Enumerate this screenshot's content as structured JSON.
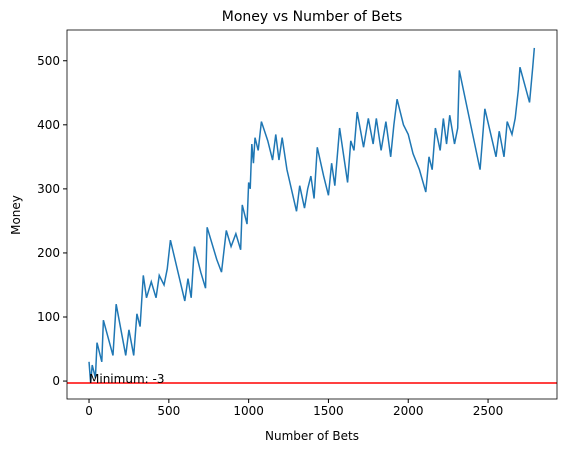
{
  "chart_data": {
    "type": "line",
    "title": "Money vs Number of Bets",
    "x_label": "Number of Bets",
    "y_label": "Money",
    "x": [
      0,
      10,
      20,
      40,
      50,
      80,
      90,
      150,
      170,
      230,
      250,
      280,
      300,
      320,
      340,
      360,
      390,
      420,
      440,
      470,
      490,
      510,
      600,
      620,
      640,
      660,
      700,
      730,
      740,
      800,
      830,
      860,
      890,
      920,
      950,
      960,
      990,
      1000,
      1010,
      1020,
      1030,
      1040,
      1060,
      1080,
      1120,
      1150,
      1170,
      1190,
      1210,
      1240,
      1300,
      1320,
      1350,
      1370,
      1390,
      1410,
      1430,
      1470,
      1500,
      1520,
      1540,
      1570,
      1620,
      1640,
      1660,
      1680,
      1720,
      1750,
      1780,
      1800,
      1830,
      1860,
      1890,
      1910,
      1930,
      1970,
      2000,
      2030,
      2070,
      2110,
      2130,
      2150,
      2170,
      2200,
      2220,
      2240,
      2260,
      2290,
      2310,
      2320,
      2450,
      2480,
      2550,
      2570,
      2600,
      2620,
      2650,
      2670,
      2690,
      2700,
      2760,
      2780,
      2790
    ],
    "series": [
      {
        "name": "Money",
        "color": "#1f77b4",
        "values": [
          30,
          -3,
          25,
          5,
          60,
          30,
          95,
          40,
          120,
          40,
          80,
          40,
          105,
          85,
          165,
          130,
          155,
          130,
          165,
          150,
          175,
          220,
          125,
          160,
          130,
          210,
          170,
          145,
          240,
          190,
          170,
          235,
          210,
          230,
          205,
          275,
          245,
          310,
          300,
          370,
          340,
          380,
          360,
          405,
          375,
          345,
          385,
          345,
          380,
          330,
          265,
          305,
          270,
          300,
          320,
          285,
          365,
          320,
          290,
          340,
          305,
          395,
          310,
          375,
          360,
          420,
          365,
          410,
          370,
          410,
          360,
          405,
          350,
          400,
          440,
          400,
          385,
          355,
          330,
          295,
          350,
          330,
          395,
          360,
          410,
          370,
          415,
          370,
          395,
          485,
          330,
          425,
          350,
          390,
          350,
          405,
          385,
          410,
          455,
          490,
          435,
          490,
          520
        ]
      }
    ],
    "hline": {
      "value": -3,
      "color": "#ff0000"
    },
    "annotation": {
      "text": "Minimum: -3",
      "x": 0,
      "y": -3
    },
    "xlim": [
      -138,
      2932
    ],
    "ylim": [
      -28,
      548
    ],
    "xticks": [
      0,
      500,
      1000,
      1500,
      2000,
      2500
    ],
    "yticks": [
      0,
      100,
      200,
      300,
      400,
      500
    ]
  }
}
